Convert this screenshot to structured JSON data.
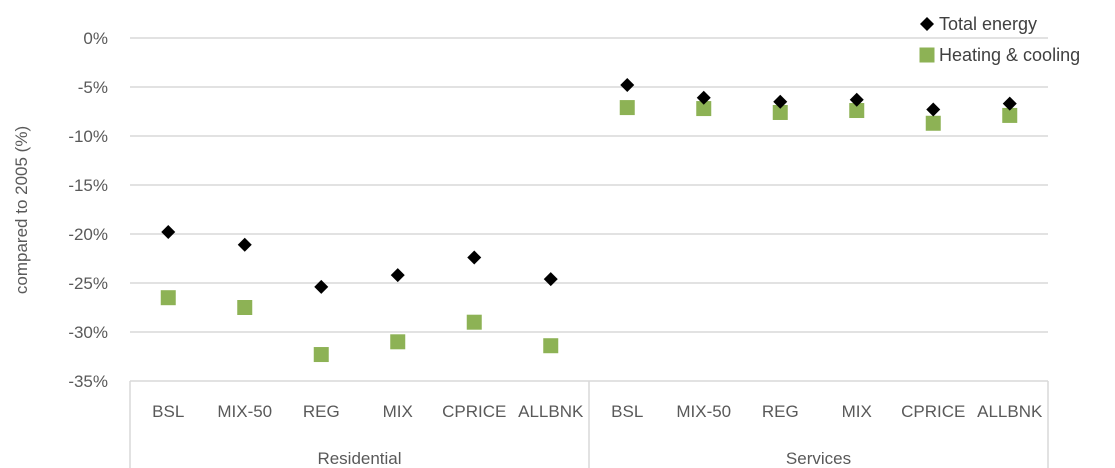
{
  "chart_data": {
    "type": "scatter",
    "title": "",
    "ylabel": "compared to 2005 (%)",
    "ylim": [
      -35,
      0
    ],
    "yticks": [
      0,
      -5,
      -10,
      -15,
      -20,
      -25,
      -30,
      -35
    ],
    "ytick_labels": [
      "0%",
      "-5%",
      "-10%",
      "-15%",
      "-20%",
      "-25%",
      "-30%",
      "-35%"
    ],
    "grid": "horizontal",
    "legend_position": "top-right",
    "groups": [
      {
        "name": "Residential",
        "categories": [
          "BSL",
          "MIX-50",
          "REG",
          "MIX",
          "CPRICE",
          "ALLBNK"
        ]
      },
      {
        "name": "Services",
        "categories": [
          "BSL",
          "MIX-50",
          "REG",
          "MIX",
          "CPRICE",
          "ALLBNK"
        ]
      }
    ],
    "series": [
      {
        "name": "Total energy",
        "marker": "diamond",
        "color": "#000000",
        "values": [
          -19.8,
          -21.1,
          -25.4,
          -24.2,
          -22.4,
          -24.6,
          -4.8,
          -6.1,
          -6.5,
          -6.3,
          -7.3,
          -6.7
        ]
      },
      {
        "name": "Heating & cooling",
        "marker": "square",
        "color": "#8db255",
        "values": [
          -26.5,
          -27.5,
          -32.3,
          -31.0,
          -29.0,
          -31.4,
          -7.1,
          -7.2,
          -7.6,
          -7.4,
          -8.7,
          -7.9
        ]
      }
    ]
  }
}
